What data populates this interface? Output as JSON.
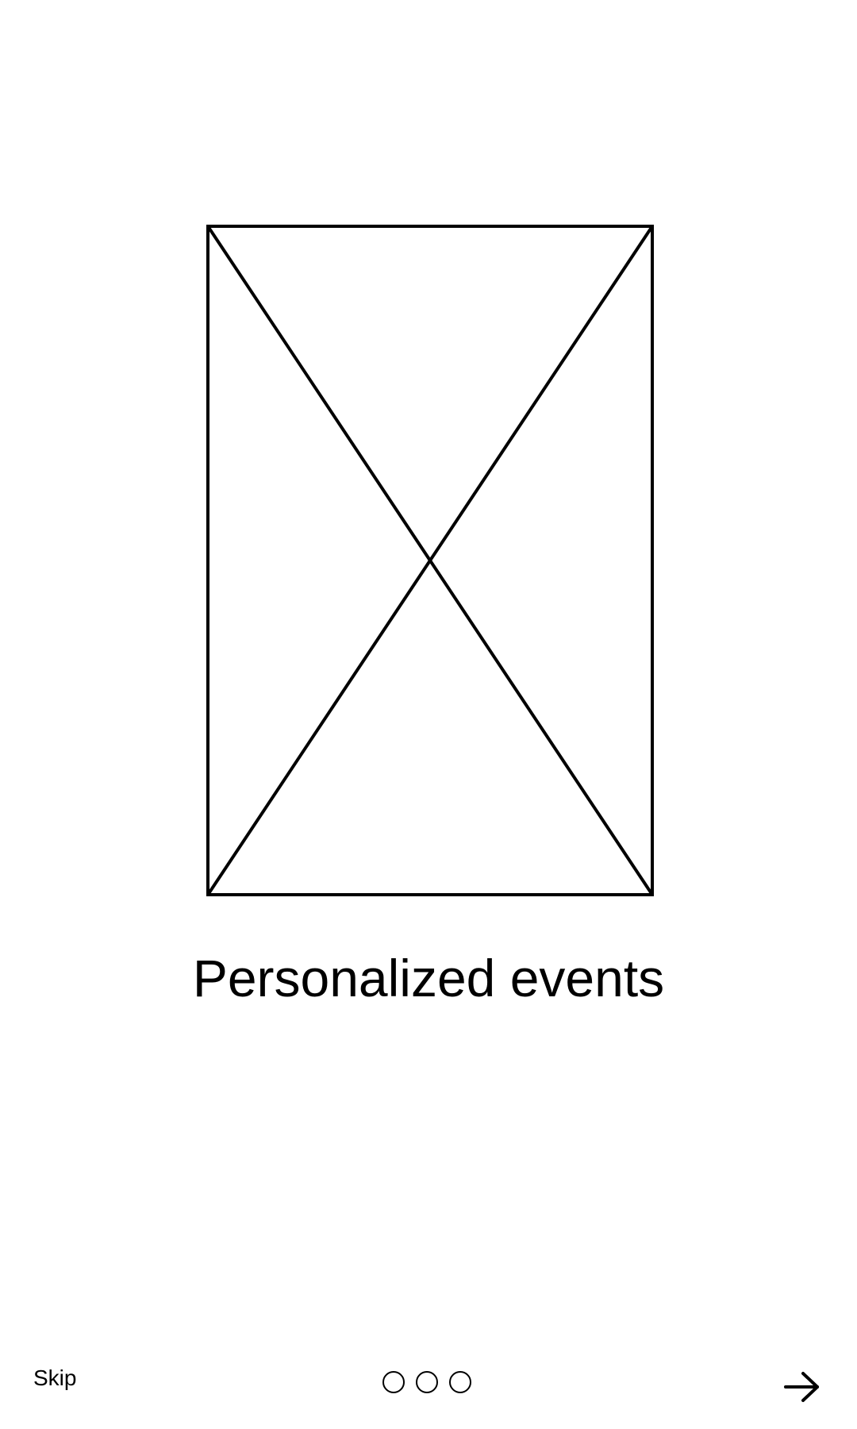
{
  "onboarding": {
    "title": "Personalized events",
    "image_icon": "image-placeholder-icon",
    "skip_label": "Skip",
    "next_icon": "arrow-right-icon",
    "page_indicator": {
      "total_pages": 3
    }
  }
}
